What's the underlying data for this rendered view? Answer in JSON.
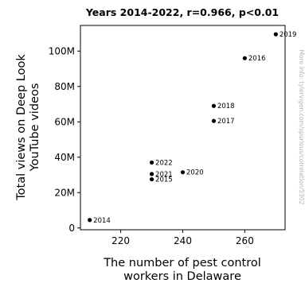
{
  "chart_data": {
    "type": "scatter",
    "title": "Years 2014-2022, r=0.966, p<0.01",
    "xlabel": "The number of pest control\nworkers in Delaware",
    "ylabel": "Total views on Deep Look\nYouTube videos",
    "xlim": [
      207,
      273
    ],
    "ylim": [
      -1000000,
      114500000
    ],
    "xticks": [
      220,
      240,
      260
    ],
    "yticks": [
      0,
      20000000,
      40000000,
      60000000,
      80000000,
      100000000
    ],
    "ytick_labels": [
      "0",
      "20M",
      "40M",
      "60M",
      "80M",
      "100M"
    ],
    "grid": false,
    "marker_color": "#000000",
    "points": [
      {
        "label": "2014",
        "x": 210,
        "y": 4500000
      },
      {
        "label": "2015",
        "x": 230,
        "y": 27500000
      },
      {
        "label": "2016",
        "x": 260,
        "y": 96000000
      },
      {
        "label": "2017",
        "x": 250,
        "y": 60500000
      },
      {
        "label": "2018",
        "x": 250,
        "y": 69000000
      },
      {
        "label": "2019",
        "x": 270,
        "y": 109500000
      },
      {
        "label": "2020",
        "x": 240,
        "y": 31500000
      },
      {
        "label": "2021",
        "x": 230,
        "y": 30500000
      },
      {
        "label": "2022",
        "x": 230,
        "y": 37000000
      }
    ]
  },
  "watermark": "More info: tylervigen.com/spurious/correlation/5302"
}
